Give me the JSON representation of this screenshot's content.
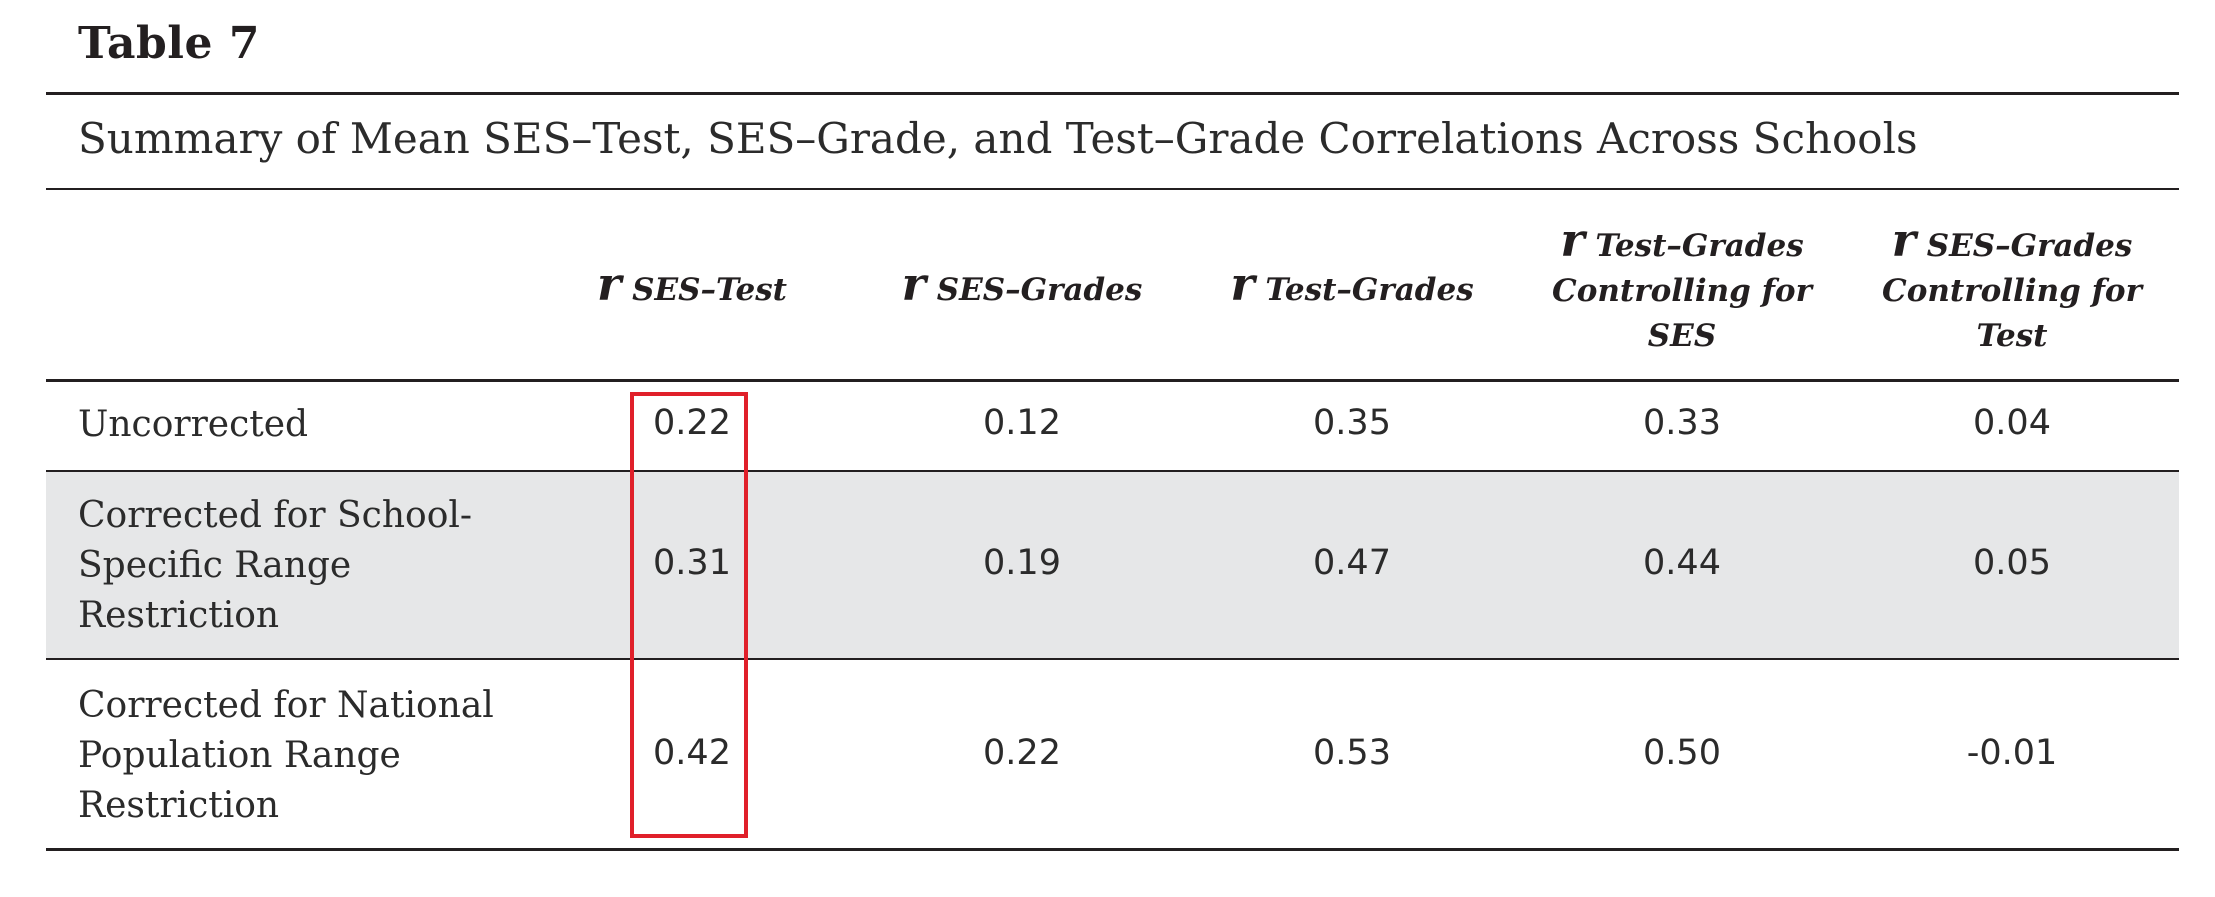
{
  "table": {
    "label": "Table 7",
    "caption": "Summary of Mean SES–Test, SES–Grade, and Test–Grade Correlations Across Schools",
    "columns": [
      {
        "r": "r",
        "sub": "SES–Test"
      },
      {
        "r": "r",
        "sub": "SES–Grades"
      },
      {
        "r": "r",
        "sub": "Test–Grades"
      },
      {
        "r": "r",
        "sub_line1": "Test–Grades",
        "sub_line2": "Controlling for",
        "sub_line3": "SES"
      },
      {
        "r": "r",
        "sub_line1": "SES–Grades",
        "sub_line2": "Controlling for",
        "sub_line3": "Test"
      }
    ],
    "rows": [
      {
        "label": "Uncorrected",
        "values": [
          "0.22",
          "0.12",
          "0.35",
          "0.33",
          "0.04"
        ]
      },
      {
        "label": "Corrected for School-\nSpecific Range\nRestriction",
        "values": [
          "0.31",
          "0.19",
          "0.47",
          "0.44",
          "0.05"
        ]
      },
      {
        "label": "Corrected for National\nPopulation Range\nRestriction",
        "values": [
          "0.42",
          "0.22",
          "0.53",
          "0.50",
          "-0.01"
        ]
      }
    ]
  },
  "colors": {
    "highlight": "#e0202a",
    "band": "#e6e7e8",
    "text": "#231f20"
  }
}
